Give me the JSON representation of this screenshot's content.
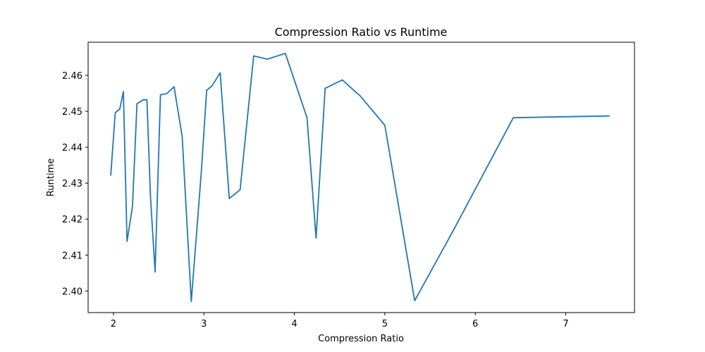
{
  "chart_data": {
    "type": "line",
    "title": "Compression Ratio vs Runtime",
    "xlabel": "Compression Ratio",
    "ylabel": "Runtime",
    "xlim": [
      1.72,
      7.76
    ],
    "ylim": [
      2.394,
      2.4692
    ],
    "xticks": [
      2,
      3,
      4,
      5,
      6,
      7
    ],
    "xtick_labels": [
      "2",
      "3",
      "4",
      "5",
      "6",
      "7"
    ],
    "yticks": [
      2.4,
      2.41,
      2.42,
      2.43,
      2.44,
      2.45,
      2.46
    ],
    "ytick_labels": [
      "2.40",
      "2.41",
      "2.42",
      "2.43",
      "2.44",
      "2.45",
      "2.46"
    ],
    "grid": false,
    "series": [
      {
        "color": "#1f77b4",
        "x": [
          1.97,
          2.02,
          2.07,
          2.11,
          2.15,
          2.21,
          2.26,
          2.33,
          2.37,
          2.41,
          2.46,
          2.52,
          2.59,
          2.67,
          2.76,
          2.86,
          2.97,
          3.03,
          3.09,
          3.18,
          3.28,
          3.4,
          3.55,
          3.7,
          3.9,
          4.14,
          4.24,
          4.34,
          4.53,
          4.73,
          5.0,
          5.33,
          5.76,
          6.42,
          7.48
        ],
        "y": [
          2.4322,
          2.4496,
          2.4506,
          2.4555,
          2.4138,
          2.4235,
          2.4521,
          2.4532,
          2.4532,
          2.426,
          2.4053,
          2.4546,
          2.4549,
          2.4568,
          2.443,
          2.3971,
          2.4327,
          2.4558,
          2.4571,
          2.4607,
          2.4257,
          2.4282,
          2.4654,
          2.4645,
          2.4661,
          2.4482,
          2.4147,
          2.4564,
          2.4587,
          2.4542,
          2.4461,
          2.3973,
          2.417,
          2.4482,
          2.4487
        ]
      }
    ]
  }
}
